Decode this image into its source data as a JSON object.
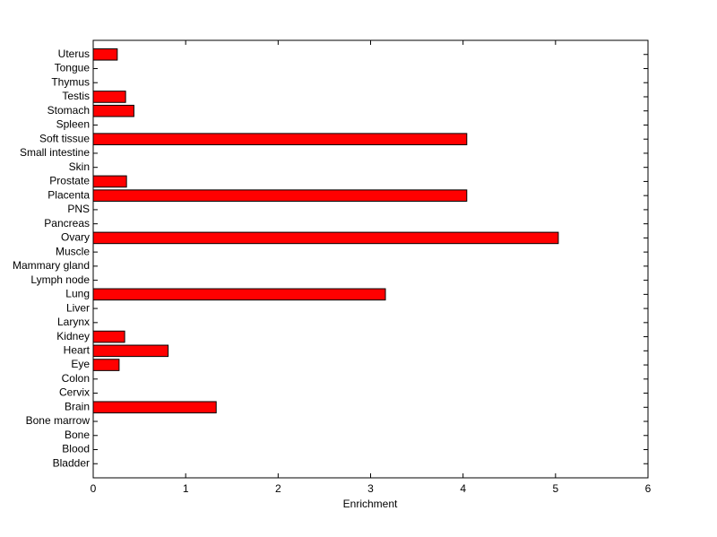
{
  "chart_data": {
    "type": "barh",
    "x_label": "Enrichment",
    "categories": [
      "Bladder",
      "Blood",
      "Bone",
      "Bone marrow",
      "Brain",
      "Cervix",
      "Colon",
      "Eye",
      "Heart",
      "Kidney",
      "Larynx",
      "Liver",
      "Lung",
      "Lymph node",
      "Mammary gland",
      "Muscle",
      "Ovary",
      "Pancreas",
      "PNS",
      "Placenta",
      "Prostate",
      "Skin",
      "Small intestine",
      "Soft tissue",
      "Spleen",
      "Stomach",
      "Testis",
      "Thymus",
      "Tongue",
      "Uterus"
    ],
    "values": [
      0,
      0,
      0,
      0,
      1.33,
      0,
      0,
      0.28,
      0.81,
      0.34,
      0,
      0,
      3.16,
      0,
      0,
      0,
      5.03,
      0,
      0,
      4.04,
      0.36,
      0,
      0,
      4.04,
      0,
      0.44,
      0.35,
      0,
      0,
      0.26
    ],
    "color": "#ff0000",
    "xlim": [
      0,
      6
    ],
    "xticks": [
      0,
      1,
      2,
      3,
      4,
      5,
      6
    ],
    "grid": false
  }
}
